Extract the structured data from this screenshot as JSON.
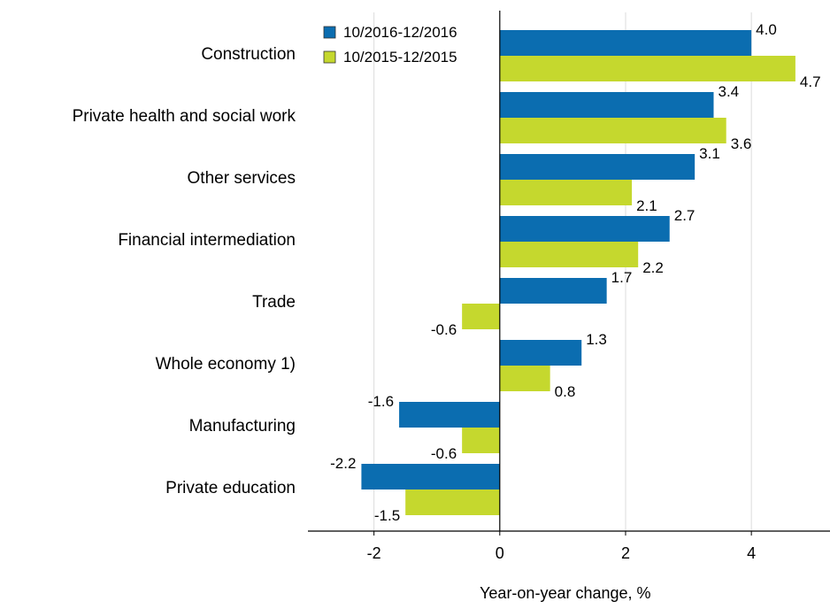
{
  "chart_data": {
    "type": "bar",
    "orientation": "horizontal",
    "categories": [
      "Construction",
      "Private health and social work",
      "Other services",
      "Financial intermediation",
      "Trade",
      "Whole economy 1)",
      "Manufacturing",
      "Private education"
    ],
    "series": [
      {
        "name": "10/2016-12/2016",
        "color": "#0b6db0",
        "values": [
          4.0,
          3.4,
          3.1,
          2.7,
          1.7,
          1.3,
          -1.6,
          -2.2
        ],
        "labels": [
          "4.0",
          "3.4",
          "3.1",
          "2.7",
          "1.7",
          "1.3",
          "-1.6",
          "-2.2"
        ]
      },
      {
        "name": "10/2015-12/2015",
        "color": "#c5d82e",
        "values": [
          4.7,
          3.6,
          2.1,
          2.2,
          -0.6,
          0.8,
          -0.6,
          -1.5
        ],
        "labels": [
          "4.7",
          "3.6",
          "2.1",
          "2.2",
          "-0.6",
          "0.8",
          "-0.6",
          "-1.5"
        ]
      }
    ],
    "xlabel": "Year-on-year change, %",
    "ylabel": "",
    "xlim": [
      -3.05,
      5.25
    ],
    "xticks": [
      -2,
      0,
      2,
      4
    ],
    "xtick_labels": [
      "-2",
      "0",
      "2",
      "4"
    ],
    "grid": "vertical",
    "legend": "top-center"
  }
}
